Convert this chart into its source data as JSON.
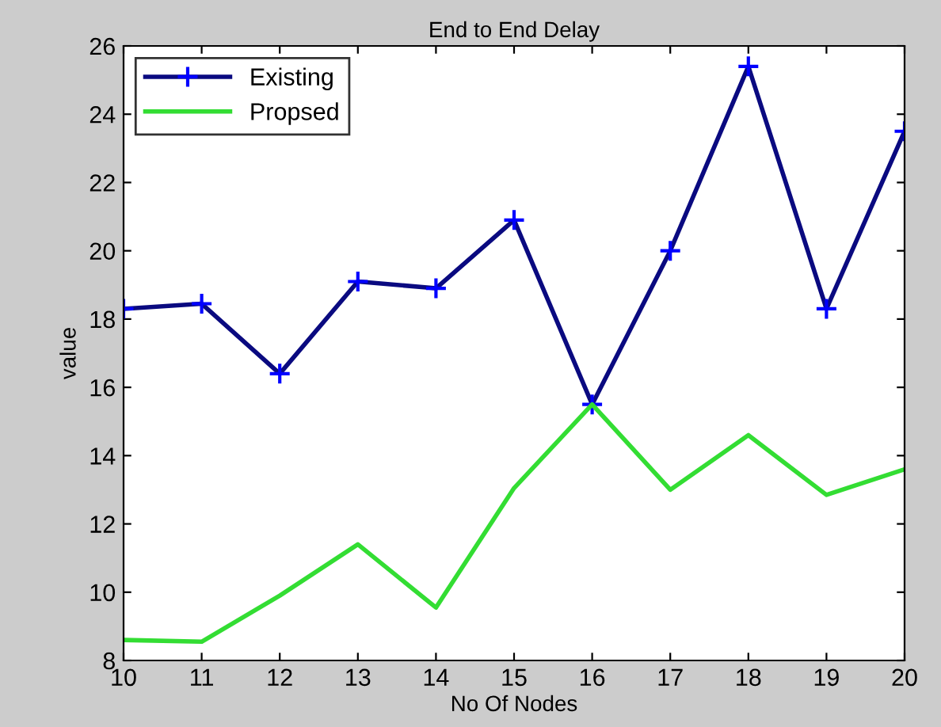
{
  "chart_data": {
    "type": "line",
    "title": "End to End Delay",
    "xlabel": "No Of Nodes",
    "ylabel": "value",
    "x": [
      10,
      11,
      12,
      13,
      14,
      15,
      16,
      17,
      18,
      19,
      20
    ],
    "series": [
      {
        "name": "Existing",
        "color": "#0a0a80",
        "marker": "cross",
        "values": [
          18.3,
          18.45,
          16.4,
          19.1,
          18.9,
          20.9,
          15.5,
          20.0,
          25.4,
          18.3,
          23.5
        ]
      },
      {
        "name": "Propsed",
        "color": "#33dd33",
        "marker": "none",
        "values": [
          8.6,
          8.55,
          9.9,
          11.4,
          9.55,
          13.05,
          15.5,
          13.0,
          14.6,
          12.85,
          13.6
        ]
      }
    ],
    "xlim": [
      10,
      20
    ],
    "xticks": [
      10,
      11,
      12,
      13,
      14,
      15,
      16,
      17,
      18,
      19,
      20
    ],
    "ylim": [
      8,
      26
    ],
    "yticks": [
      8,
      10,
      12,
      14,
      16,
      18,
      20,
      22,
      24,
      26
    ],
    "grid": false,
    "legend": "top left",
    "line_style": "solid"
  }
}
